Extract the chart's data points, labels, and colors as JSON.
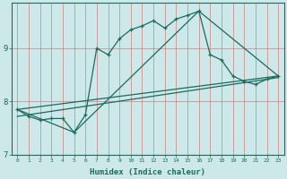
{
  "xlabel": "Humidex (Indice chaleur)",
  "background_color": "#cce8e8",
  "line_color": "#1a6b60",
  "grid_color_v": "#d08080",
  "grid_color_h": "#d08080",
  "xlim": [
    -0.5,
    23.5
  ],
  "ylim": [
    7.0,
    9.85
  ],
  "yticks": [
    7,
    8,
    9
  ],
  "xticks": [
    0,
    1,
    2,
    3,
    4,
    5,
    6,
    7,
    8,
    9,
    10,
    11,
    12,
    13,
    14,
    15,
    16,
    17,
    18,
    19,
    20,
    21,
    22,
    23
  ],
  "line1_x": [
    0,
    1,
    2,
    3,
    4,
    5,
    6,
    7,
    8,
    9,
    10,
    11,
    12,
    13,
    14,
    15,
    16,
    17,
    18,
    19,
    20,
    21,
    22,
    23
  ],
  "line1_y": [
    7.85,
    7.72,
    7.65,
    7.68,
    7.68,
    7.42,
    7.75,
    9.0,
    8.88,
    9.18,
    9.35,
    9.42,
    9.52,
    9.38,
    9.55,
    9.62,
    9.7,
    8.88,
    8.78,
    8.48,
    8.38,
    8.32,
    8.42,
    8.48
  ],
  "line2_x": [
    0,
    5,
    16,
    23
  ],
  "line2_y": [
    7.85,
    7.42,
    9.7,
    8.48
  ],
  "line3_x": [
    0,
    23
  ],
  "line3_y": [
    7.85,
    8.48
  ],
  "line4_x": [
    0,
    23
  ],
  "line4_y": [
    7.72,
    8.45
  ]
}
